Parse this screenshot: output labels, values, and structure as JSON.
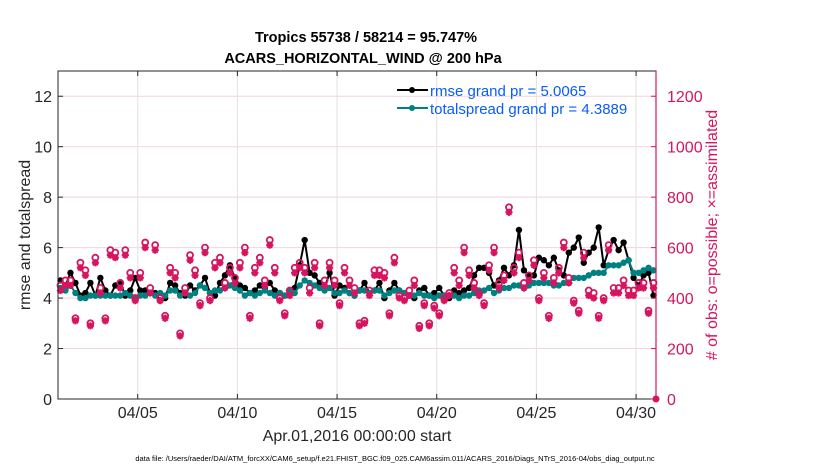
{
  "chart_data": {
    "type": "line",
    "title_line1": "Tropics 55738 / 58214 = 95.747%",
    "title_line2": "ACARS_HORIZONTAL_WIND @ 200 hPa",
    "xlabel": "Apr.01,2016 00:00:00 start",
    "ylabel": "rmse and totalspread",
    "ylabel_right": "# of obs: o=possible; ×=assimilated",
    "footnote": "data file: /Users/raeder/DAI/ATM_forcXX/CAM6_setup/f.e21.FHIST_BGC.f09_025.CAM6assim.011/ACARS_2016/Diags_NTrS_2016-04/obs_diag_output.nc",
    "xlim_days": [
      0,
      30
    ],
    "x_ticks": [
      {
        "day": 4,
        "label": "04/05"
      },
      {
        "day": 9,
        "label": "04/10"
      },
      {
        "day": 14,
        "label": "04/15"
      },
      {
        "day": 19,
        "label": "04/20"
      },
      {
        "day": 24,
        "label": "04/25"
      },
      {
        "day": 29,
        "label": "04/30"
      }
    ],
    "ylim": [
      0,
      13
    ],
    "y_ticks": [
      0,
      2,
      4,
      6,
      8,
      10,
      12
    ],
    "ylim_right": [
      0,
      1300
    ],
    "y_ticks_right": [
      0,
      200,
      400,
      600,
      800,
      1000,
      1200
    ],
    "grid": true,
    "legend_placement": "top-right",
    "x_step_days": 0.25,
    "x_start_day": 0.125,
    "series": [
      {
        "name": "rmse",
        "legend": "rmse grand pr = 5.0065",
        "color": "#000000",
        "axis": "left",
        "values": [
          4.7,
          4.5,
          5.0,
          4.6,
          4.1,
          4.2,
          4.6,
          4.1,
          4.8,
          4.3,
          4.1,
          4.5,
          4.6,
          4.1,
          4.3,
          4.8,
          4.3,
          4.3,
          4.2,
          4.2,
          3.9,
          4.0,
          4.6,
          4.5,
          4.2,
          4.1,
          4.5,
          4.3,
          4.5,
          4.8,
          4.2,
          4.1,
          4.6,
          4.9,
          5.3,
          4.8,
          4.5,
          4.4,
          4.2,
          4.3,
          4.5,
          4.4,
          4.6,
          4.3,
          4.2,
          4.1,
          4.3,
          4.4,
          5.3,
          6.3,
          5.0,
          4.9,
          4.6,
          4.4,
          5.0,
          4.1,
          4.5,
          4.4,
          4.2,
          4.1,
          4.3,
          4.6,
          4.2,
          4.3,
          4.6,
          4.0,
          4.3,
          4.6,
          4.3,
          4.2,
          4.1,
          4.0,
          4.3,
          4.4,
          4.1,
          4.2,
          4.4,
          4.1,
          4.0,
          4.3,
          4.2,
          4.3,
          4.4,
          4.9,
          5.2,
          5.2,
          5.0,
          4.5,
          4.7,
          5.2,
          4.9,
          5.3,
          6.7,
          5.1,
          4.9,
          4.9,
          5.6,
          5.5,
          5.3,
          5.6,
          5.1,
          4.9,
          5.8,
          6.0,
          6.4,
          5.4,
          5.8,
          6.0,
          6.8,
          5.3,
          5.9,
          6.3,
          5.9,
          6.2,
          5.5,
          4.8,
          4.5,
          4.9,
          5.0,
          4.1
        ]
      },
      {
        "name": "totalspread",
        "legend": "totalspread grand pr = 4.3889",
        "color": "#008080",
        "axis": "left",
        "values": [
          4.4,
          4.3,
          4.5,
          4.2,
          4.0,
          4.0,
          4.1,
          4.1,
          4.1,
          4.1,
          4.1,
          4.1,
          4.1,
          4.2,
          4.1,
          4.0,
          4.1,
          4.1,
          4.2,
          4.1,
          4.2,
          4.1,
          4.3,
          4.3,
          4.1,
          4.2,
          4.1,
          4.2,
          4.5,
          4.4,
          4.2,
          4.3,
          4.3,
          4.4,
          4.5,
          4.4,
          4.3,
          4.1,
          4.2,
          4.1,
          4.2,
          4.3,
          4.2,
          4.1,
          4.2,
          4.1,
          4.3,
          4.2,
          4.5,
          4.7,
          4.6,
          4.5,
          4.4,
          4.3,
          4.4,
          4.2,
          4.2,
          4.3,
          4.2,
          4.1,
          4.3,
          4.3,
          4.2,
          4.3,
          4.3,
          4.1,
          4.2,
          4.3,
          4.3,
          4.2,
          4.1,
          4.1,
          4.2,
          4.1,
          4.1,
          4.0,
          4.1,
          4.1,
          4.1,
          4.1,
          4.0,
          4.1,
          4.1,
          4.2,
          4.3,
          4.3,
          4.4,
          4.2,
          4.3,
          4.4,
          4.4,
          4.5,
          4.5,
          4.4,
          4.5,
          4.6,
          4.6,
          4.6,
          4.6,
          4.5,
          4.5,
          4.6,
          4.6,
          4.8,
          4.8,
          4.8,
          4.9,
          5.0,
          5.0,
          5.0,
          5.3,
          5.3,
          5.3,
          5.4,
          5.5,
          5.0,
          5.0,
          5.1,
          5.2,
          5.1
        ]
      },
      {
        "name": "possible obs",
        "marker": "o",
        "color": "#d6145f",
        "axis": "right",
        "values": [
          450,
          470,
          470,
          320,
          540,
          510,
          300,
          560,
          440,
          320,
          590,
          580,
          460,
          590,
          500,
          400,
          500,
          620,
          440,
          610,
          400,
          330,
          520,
          500,
          260,
          440,
          570,
          510,
          380,
          600,
          400,
          540,
          560,
          460,
          520,
          480,
          540,
          600,
          330,
          520,
          560,
          470,
          630,
          520,
          400,
          340,
          430,
          520,
          540,
          520,
          440,
          540,
          300,
          470,
          540,
          470,
          380,
          520,
          470,
          440,
          300,
          310,
          430,
          510,
          510,
          500,
          340,
          560,
          410,
          400,
          430,
          470,
          290,
          380,
          300,
          370,
          340,
          400,
          420,
          520,
          470,
          600,
          510,
          460,
          420,
          380,
          530,
          600,
          460,
          490,
          760,
          520,
          580,
          460,
          490,
          550,
          400,
          500,
          330,
          480,
          520,
          620,
          480,
          390,
          350,
          580,
          430,
          420,
          330,
          400,
          610,
          440,
          440,
          470,
          430,
          430,
          460,
          460,
          350,
          460
        ]
      },
      {
        "name": "assimilated obs",
        "marker": "x",
        "color": "#d6145f",
        "axis": "right",
        "values": [
          430,
          450,
          450,
          310,
          520,
          490,
          290,
          540,
          420,
          310,
          570,
          560,
          440,
          570,
          480,
          390,
          480,
          600,
          420,
          590,
          390,
          320,
          500,
          480,
          250,
          420,
          550,
          490,
          370,
          580,
          390,
          520,
          540,
          440,
          500,
          460,
          520,
          580,
          320,
          500,
          540,
          450,
          610,
          500,
          390,
          330,
          410,
          500,
          520,
          500,
          420,
          520,
          290,
          450,
          520,
          450,
          370,
          500,
          450,
          420,
          290,
          300,
          410,
          490,
          490,
          480,
          330,
          540,
          400,
          390,
          410,
          450,
          280,
          370,
          290,
          360,
          330,
          390,
          410,
          500,
          450,
          580,
          490,
          440,
          410,
          370,
          510,
          580,
          440,
          470,
          740,
          500,
          560,
          440,
          470,
          530,
          390,
          480,
          320,
          460,
          500,
          600,
          460,
          380,
          340,
          560,
          410,
          400,
          320,
          390,
          590,
          420,
          420,
          450,
          410,
          410,
          440,
          440,
          340,
          440
        ]
      }
    ],
    "final_point": {
      "day": 30,
      "obs_count": 0,
      "color": "#d6145f"
    }
  }
}
